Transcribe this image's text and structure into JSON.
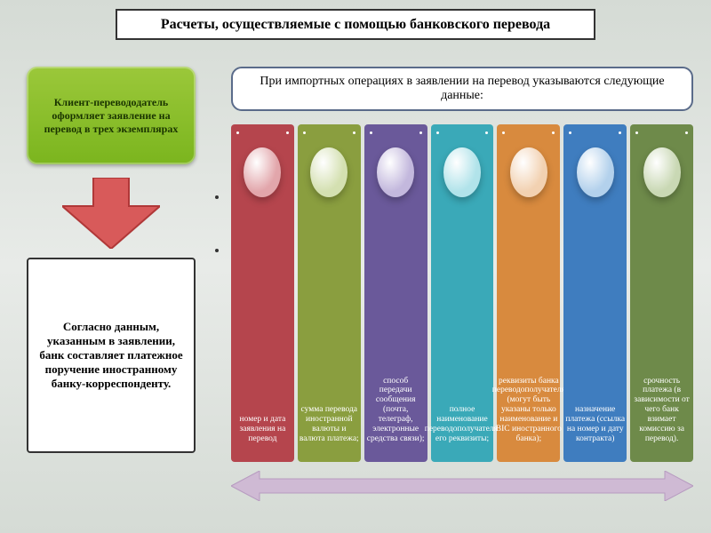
{
  "title": "Расчеты, осуществляемые с помощью банковского перевода",
  "green_box": "Клиент-перевододатель оформляет заявление на перевод в трех экземплярах",
  "arrow_color": "#c94a4a",
  "bottom_white": "Согласно данным, указанным в заявлении, банк составляет платежное поручение иностранному банку-корреспонденту.",
  "header_white": "При импортных операциях в заявлении на перевод указываются следующие данные:",
  "double_arrow_color": "#cfbad4",
  "columns": [
    {
      "bg": "#b5454d",
      "oval": "#e2a6ab",
      "text": "номер и дата заявления на перевод"
    },
    {
      "bg": "#8a9e3f",
      "oval": "#d4e0b1",
      "text": "сумма перевода иностранной валюты и валюта платежа;"
    },
    {
      "bg": "#6a599a",
      "oval": "#c3b8dd",
      "text": "способ передачи сообщения (почта, телеграф, электронные средства связи);"
    },
    {
      "bg": "#3aa9b8",
      "oval": "#b1e3ea",
      "text": "полное наименование переводополучателя, его реквизиты;"
    },
    {
      "bg": "#d88a3e",
      "oval": "#f2d1b1",
      "text": "реквизиты банка переводополучателя (могут быть указаны только наименование и BIC иностранного банка);"
    },
    {
      "bg": "#3f7dbf",
      "oval": "#b3d1ec",
      "text": "назначение платежа (ссылка на номер и дату контракта)"
    },
    {
      "bg": "#6e8a4a",
      "oval": "#c9d8b4",
      "text": "срочность платежа (в зависимости от чего банк взимает комиссию за перевод)."
    }
  ]
}
